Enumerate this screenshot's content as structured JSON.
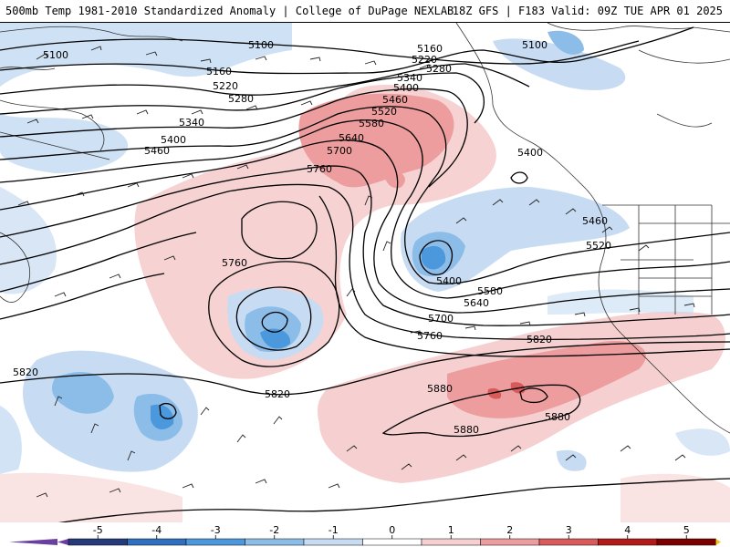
{
  "header": {
    "title_left": "500mb Temp 1981-2010 Standardized Anomaly | College of DuPage NEXLAB",
    "title_right": "18Z GFS | F183 Valid: 09Z TUE APR 01 2025"
  },
  "contour_labels": [
    {
      "id": "c5100-w",
      "text": "5100"
    },
    {
      "id": "c5100-n",
      "text": "5100"
    },
    {
      "id": "c5100-e",
      "text": "5100"
    },
    {
      "id": "c5160-w",
      "text": "5160"
    },
    {
      "id": "c5160-e",
      "text": "5160"
    },
    {
      "id": "c5220-w",
      "text": "5220"
    },
    {
      "id": "c5220-e",
      "text": "5220"
    },
    {
      "id": "c5280-w",
      "text": "5280"
    },
    {
      "id": "c5280-e",
      "text": "5280"
    },
    {
      "id": "c5340-w",
      "text": "5340"
    },
    {
      "id": "c5340-e",
      "text": "5340"
    },
    {
      "id": "c5400-w",
      "text": "5400"
    },
    {
      "id": "c5400-n",
      "text": "5400"
    },
    {
      "id": "c5400-e",
      "text": "5400"
    },
    {
      "id": "c5400-low",
      "text": "5400"
    },
    {
      "id": "c5460-w",
      "text": "5460"
    },
    {
      "id": "c5460-n",
      "text": "5460"
    },
    {
      "id": "c5460-e",
      "text": "5460"
    },
    {
      "id": "c5520-n",
      "text": "5520"
    },
    {
      "id": "c5520-e",
      "text": "5520"
    },
    {
      "id": "c5580-n",
      "text": "5580"
    },
    {
      "id": "c5580-s",
      "text": "5580"
    },
    {
      "id": "c5640-n",
      "text": "5640"
    },
    {
      "id": "c5640-s",
      "text": "5640"
    },
    {
      "id": "c5700-n",
      "text": "5700"
    },
    {
      "id": "c5700-s",
      "text": "5700"
    },
    {
      "id": "c5760-n",
      "text": "5760"
    },
    {
      "id": "c5760-w",
      "text": "5760"
    },
    {
      "id": "c5760-s",
      "text": "5760"
    },
    {
      "id": "c5820-w",
      "text": "5820"
    },
    {
      "id": "c5820-s",
      "text": "5820"
    },
    {
      "id": "c5820-e",
      "text": "5820"
    },
    {
      "id": "c5880-a",
      "text": "5880"
    },
    {
      "id": "c5880-b",
      "text": "5880"
    },
    {
      "id": "c5880-c",
      "text": "5880"
    }
  ],
  "colorbar": {
    "ticks": [
      "-5",
      "-4",
      "-3",
      "-2",
      "-1",
      "0",
      "1",
      "2",
      "3",
      "4",
      "5"
    ],
    "colors": {
      "min_cap": "#6a3fa0",
      "n5": "#243a7a",
      "n4": "#2f6fbf",
      "n3": "#4c98dc",
      "n2": "#8cbde8",
      "n1": "#c7dcf2",
      "zero": "#ffffff",
      "p1": "#f6d0d0",
      "p2": "#ed9d9d",
      "p3": "#d95a5a",
      "p4": "#b31b1b",
      "p5": "#7a0000",
      "max_cap": "#f2c21a"
    }
  },
  "colors": {
    "contour": "#000000",
    "coast": "#333333",
    "barb": "#222222",
    "background": "#ffffff"
  }
}
